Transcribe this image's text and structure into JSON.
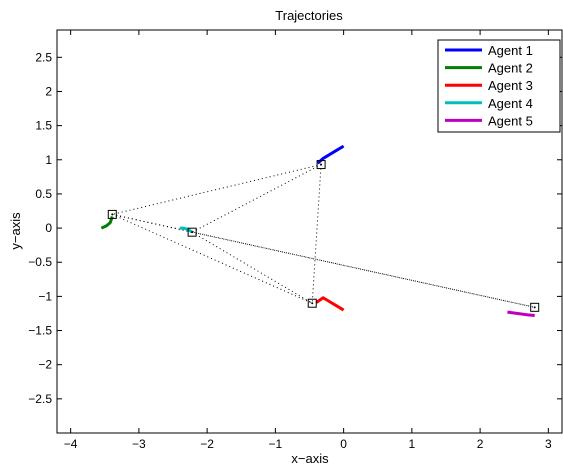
{
  "chart_data": {
    "type": "line",
    "title": "Trajectories",
    "xlabel": "x−axis",
    "ylabel": "y−axis",
    "xlim": [
      -4.2,
      3.2
    ],
    "ylim": [
      -3.0,
      2.9
    ],
    "xticks": [
      -4,
      -3,
      -2,
      -1,
      0,
      1,
      2,
      3
    ],
    "xtick_labels": [
      "−4",
      "−3",
      "−2",
      "−1",
      "0",
      "1",
      "2",
      "3"
    ],
    "yticks": [
      2.5,
      2,
      1.5,
      1,
      0.5,
      0,
      -0.5,
      -1,
      -1.5,
      -2,
      -2.5
    ],
    "ytick_labels": [
      "2.5",
      "2",
      "1.5",
      "1",
      "0.5",
      "0",
      "−0.5",
      "−1",
      "−1.5",
      "−2",
      "−2.5"
    ],
    "grid": false,
    "legend_position": "top-right",
    "series": [
      {
        "name": "Agent 1",
        "color": "#0000ff",
        "x": [
          0.0,
          -0.1,
          -0.2,
          -0.3,
          -0.38
        ],
        "y": [
          1.2,
          1.14,
          1.08,
          1.02,
          0.95
        ]
      },
      {
        "name": "Agent 2",
        "color": "#007f00",
        "x": [
          -3.55,
          -3.48,
          -3.42,
          -3.39
        ],
        "y": [
          0.0,
          0.03,
          0.08,
          0.17
        ]
      },
      {
        "name": "Agent 3",
        "color": "#ff0000",
        "x": [
          0.0,
          -0.1,
          -0.2,
          -0.3,
          -0.4
        ],
        "y": [
          -1.2,
          -1.14,
          -1.08,
          -1.02,
          -1.09
        ]
      },
      {
        "name": "Agent 4",
        "color": "#00bfbf",
        "x": [
          -2.4,
          -2.35,
          -2.28,
          -2.22
        ],
        "y": [
          0.0,
          0.0,
          -0.02,
          -0.06
        ]
      },
      {
        "name": "Agent 5",
        "color": "#bf00bf",
        "x": [
          2.4,
          2.55,
          2.7,
          2.8
        ],
        "y": [
          -1.23,
          -1.25,
          -1.27,
          -1.28
        ]
      }
    ],
    "markers": [
      {
        "x": -0.33,
        "y": 0.93
      },
      {
        "x": -3.39,
        "y": 0.2
      },
      {
        "x": -0.46,
        "y": -1.1
      },
      {
        "x": -2.22,
        "y": -0.06
      },
      {
        "x": 2.8,
        "y": -1.16
      }
    ],
    "connections": [
      [
        0,
        1
      ],
      [
        0,
        3
      ],
      [
        0,
        2
      ],
      [
        1,
        3
      ],
      [
        1,
        2
      ],
      [
        1,
        4
      ],
      [
        3,
        2
      ],
      [
        3,
        4
      ]
    ]
  }
}
